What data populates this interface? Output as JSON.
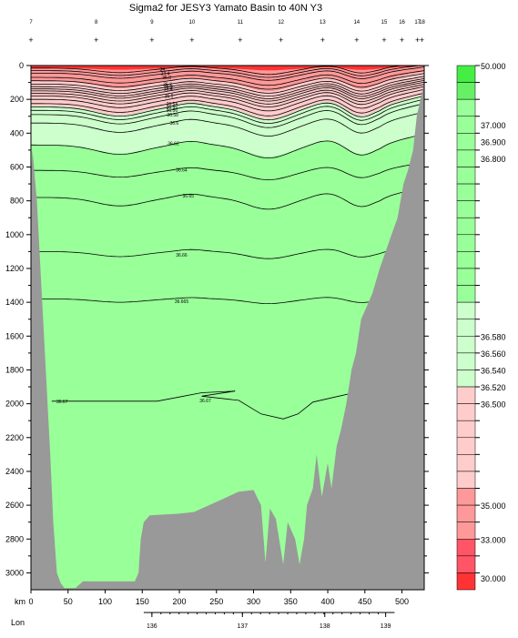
{
  "title": "Sigma2 for JESY3 Yamato Basin to 40N Y3",
  "chart_data": {
    "type": "heatmap",
    "title": "Sigma2 for JESY3 Yamato Basin to 40N Y3",
    "y_axis": {
      "min": 0,
      "max": 3100,
      "ticks": [
        "0",
        "200",
        "400",
        "600",
        "800",
        "1000",
        "1200",
        "1400",
        "1600",
        "1800",
        "2000",
        "2200",
        "2400",
        "2600",
        "2800",
        "3000"
      ],
      "reversed": true
    },
    "x_axis": {
      "label": "km",
      "min": 0,
      "max": 530,
      "ticks": [
        "0",
        "50",
        "100",
        "150",
        "200",
        "250",
        "300",
        "350",
        "400",
        "450",
        "500"
      ]
    },
    "lon_axis": {
      "label": "Lon",
      "ticks": [
        {
          "lon": 136,
          "km": 163,
          "label": "136"
        },
        {
          "lon": 137,
          "km": 285,
          "label": "137"
        },
        {
          "lon": 138,
          "km": 396,
          "label": "138"
        },
        {
          "lon": 139,
          "km": 478,
          "label": "139"
        }
      ]
    },
    "stations": [
      {
        "label": "7",
        "km": 0
      },
      {
        "label": "8",
        "km": 88
      },
      {
        "label": "9",
        "km": 163
      },
      {
        "label": "10",
        "km": 217
      },
      {
        "label": "11",
        "km": 282
      },
      {
        "label": "12",
        "km": 337
      },
      {
        "label": "13",
        "km": 393
      },
      {
        "label": "14",
        "km": 439
      },
      {
        "label": "15",
        "km": 476
      },
      {
        "label": "16",
        "km": 500
      },
      {
        "label": "17",
        "km": 521
      },
      {
        "label": "18",
        "km": 527
      }
    ],
    "contour_labels": [
      {
        "text": "34",
        "km": 177,
        "depth": 22
      },
      {
        "text": "34.4",
        "km": 181,
        "depth": 45
      },
      {
        "text": "35.0",
        "km": 183,
        "depth": 70
      },
      {
        "text": "35.2",
        "km": 184,
        "depth": 110
      },
      {
        "text": "35.3",
        "km": 185,
        "depth": 125
      },
      {
        "text": "35.4",
        "km": 185,
        "depth": 138
      },
      {
        "text": "35.5",
        "km": 186,
        "depth": 180
      },
      {
        "text": "36.54",
        "km": 190,
        "depth": 225
      },
      {
        "text": "36.55",
        "km": 190,
        "depth": 245
      },
      {
        "text": "36.56",
        "km": 190,
        "depth": 265
      },
      {
        "text": "36.58",
        "km": 191,
        "depth": 290
      },
      {
        "text": "36.6",
        "km": 193,
        "depth": 340
      },
      {
        "text": "36.62",
        "km": 192,
        "depth": 460
      },
      {
        "text": "36.64",
        "km": 203,
        "depth": 615
      },
      {
        "text": "36.65",
        "km": 212,
        "depth": 770
      },
      {
        "text": "36.66",
        "km": 203,
        "depth": 1120
      },
      {
        "text": "36.665",
        "km": 203,
        "depth": 1395
      },
      {
        "text": "36.67",
        "km": 42,
        "depth": 1985
      },
      {
        "text": "36.67",
        "km": 235,
        "depth": 1980
      }
    ],
    "colorbar": {
      "labels": [
        {
          "text": "50.000",
          "value": 50.0
        },
        {
          "text": "37.000",
          "value": 37.0
        },
        {
          "text": "36.900",
          "value": 36.9
        },
        {
          "text": "36.800",
          "value": 36.8
        },
        {
          "text": "36.580",
          "value": 36.58
        },
        {
          "text": "36.560",
          "value": 36.56
        },
        {
          "text": "36.540",
          "value": 36.54
        },
        {
          "text": "36.520",
          "value": 36.52
        },
        {
          "text": "36.500",
          "value": 36.5
        },
        {
          "text": "35.000",
          "value": 35.0
        },
        {
          "text": "33.000",
          "value": 33.0
        },
        {
          "text": "30.000",
          "value": 30.0
        }
      ]
    },
    "colors": {
      "deep_green": "#99ff99",
      "light_green": "#ccffcc",
      "pink": "#ffcccc",
      "salmon": "#ff9999",
      "red": "#ff3333",
      "bottom": "#999999"
    },
    "grid": false
  }
}
